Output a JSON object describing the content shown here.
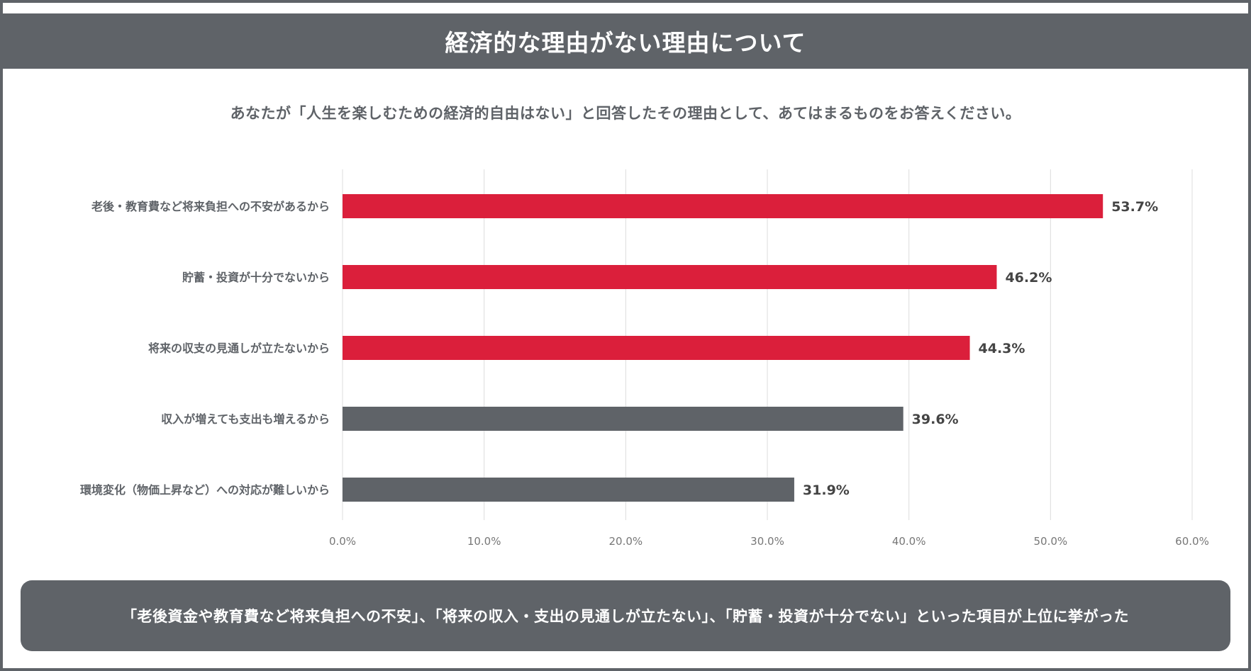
{
  "header": {
    "title": "経済的な理由がない理由について"
  },
  "question": "あなたが「人生を楽しむための経済的自由はない」と回答したその理由として、あてはまるものをお答えください。",
  "chart_data": {
    "type": "bar",
    "orientation": "horizontal",
    "title": "経済的な理由がない理由について",
    "categories": [
      "老後・教育費など将来負担への不安があるから",
      "貯蓄・投資が十分でないから",
      "将来の収支の見通しが立たないから",
      "収入が増えても支出も増えるから",
      "環境変化（物価上昇など）への対応が難しいから"
    ],
    "values": [
      53.7,
      46.2,
      44.3,
      39.6,
      31.9
    ],
    "value_labels": [
      "53.7%",
      "46.2%",
      "44.3%",
      "39.6%",
      "31.9%"
    ],
    "highlighted": [
      true,
      true,
      true,
      false,
      false
    ],
    "xlim": [
      0,
      60
    ],
    "xticks": [
      0,
      10,
      20,
      30,
      40,
      50,
      60
    ],
    "xtick_labels": [
      "0.0%",
      "10.0%",
      "20.0%",
      "30.0%",
      "40.0%",
      "50.0%",
      "60.0%"
    ],
    "grid": true,
    "xlabel": "",
    "ylabel": ""
  },
  "colors": {
    "highlight": "#db1f3b",
    "normal": "#5f6368",
    "grid": "#dcdcdc",
    "text": "#5f6368",
    "value_text": "#444444"
  },
  "summary": "「老後資金や教育費など将来負担への不安」、「将来の収入・支出の見通しが立たない」、「貯蓄・投資が十分でない」といった項目が上位に挙がった"
}
